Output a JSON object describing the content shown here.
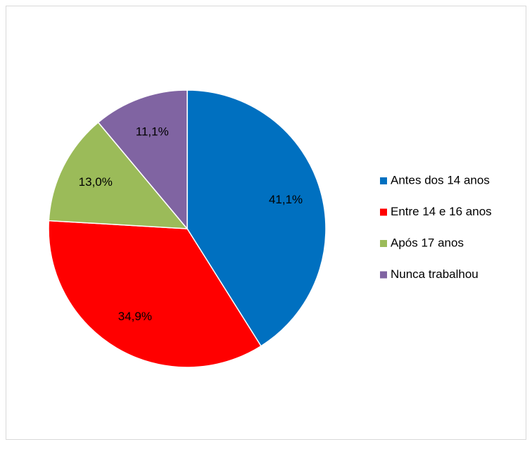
{
  "chart_data": {
    "type": "pie",
    "categories": [
      "Antes dos 14 anos",
      "Entre 14 e 16 anos",
      "Após 17 anos",
      "Nunca trabalhou"
    ],
    "values": [
      41.1,
      34.9,
      13.0,
      11.1
    ],
    "value_labels": [
      "41,1%",
      "34,9%",
      "13,0%",
      "11,1%"
    ],
    "colors": [
      "#0070c0",
      "#ff0000",
      "#9bbb59",
      "#8064a2"
    ],
    "legend": "right"
  }
}
